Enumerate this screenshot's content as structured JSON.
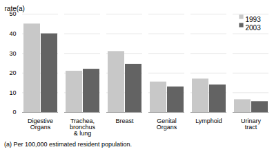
{
  "chart_data": {
    "type": "bar",
    "categories": [
      "Digestive\nOrgans",
      "Trachea,\nbronchus\n& lung",
      "Breast",
      "Genital\nOrgans",
      "Lymphoid",
      "Urinary\ntract"
    ],
    "series": [
      {
        "name": "1993",
        "color": "#c8c8c8",
        "values": [
          45,
          21,
          31,
          15.5,
          17,
          6.5
        ]
      },
      {
        "name": "2003",
        "color": "#636363",
        "values": [
          40,
          22,
          24.5,
          13,
          14,
          5.5
        ]
      }
    ],
    "ylabel": "rate(a)",
    "footnote": "(a) Per 100,000 estimated resident population.",
    "ylim": [
      0,
      50
    ],
    "yticks": [
      0,
      10,
      20,
      30,
      40,
      50
    ],
    "grid": true,
    "legend": "upper right"
  }
}
